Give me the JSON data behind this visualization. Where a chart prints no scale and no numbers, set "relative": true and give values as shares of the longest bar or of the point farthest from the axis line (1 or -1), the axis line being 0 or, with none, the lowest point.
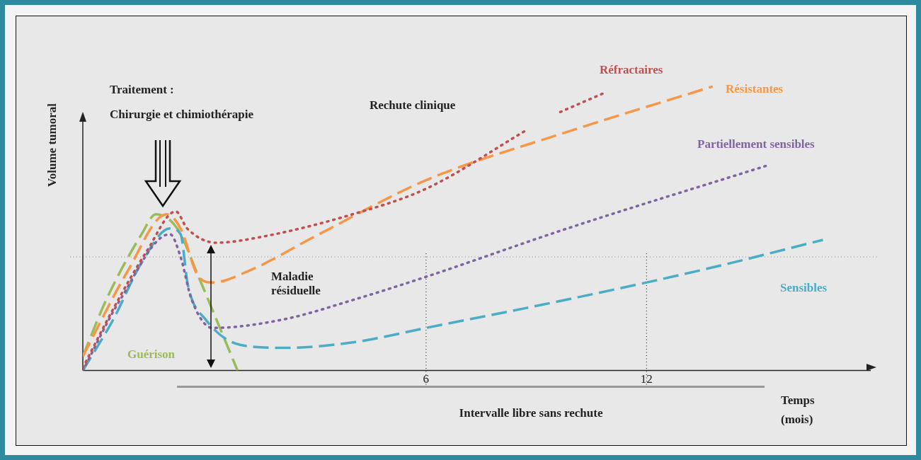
{
  "chart_data": {
    "type": "line",
    "relative": true,
    "xlabel": "Temps (mois)",
    "ylabel": "Volume tumoral",
    "xlim": [
      -3.34,
      18.1
    ],
    "xticks": [
      6,
      12
    ],
    "grid": false,
    "marker": "none",
    "annotations": [
      "Traitement :",
      "Chirurgie et chimiothérapie",
      "Rechute clinique",
      "Maladie résiduelle",
      "Intervalle libre sans rechute"
    ],
    "ref_lines": [
      {
        "axis": "y",
        "value": 0.4,
        "color": "#888888",
        "line_style": "dotted"
      },
      {
        "axis": "x",
        "value": 6,
        "color": "#333333",
        "line_style": "dotted"
      },
      {
        "axis": "x",
        "value": 12,
        "color": "#333333",
        "line_style": "dotted"
      }
    ],
    "series": [
      {
        "name": "Réfractaires",
        "color": "#c0504d",
        "line_style": "dotted",
        "x": [
          -3.34,
          -2.5,
          -1.6,
          -0.81,
          -0.5,
          0.29,
          1.5,
          4,
          6,
          8.78,
          9.2,
          9.65,
          10.9
        ],
        "values": [
          0.01,
          0.22,
          0.42,
          0.56,
          0.5,
          0.45,
          0.47,
          0.55,
          0.64,
          0.85,
          null,
          0.91,
          0.98
        ]
      },
      {
        "name": "Résistantes",
        "color": "#f79646",
        "line_style": "dashed",
        "x": [
          -3.34,
          -2.12,
          -1.06,
          -0.68,
          -0.19,
          0.19,
          1.16,
          3.09,
          6,
          9.84,
          13.8
        ],
        "values": [
          0.05,
          0.35,
          0.55,
          0.5,
          0.33,
          0.31,
          0.35,
          0.48,
          0.67,
          0.84,
          1.0
        ]
      },
      {
        "name": "Partiellement sensibles",
        "color": "#8064a2",
        "line_style": "dotted",
        "x": [
          -3.34,
          -2.32,
          -0.97,
          -0.68,
          -0.38,
          0.19,
          2.12,
          4.05,
          6,
          9.84,
          15.24
        ],
        "values": [
          0,
          0.25,
          0.48,
          0.4,
          0.25,
          0.15,
          0.18,
          0.25,
          0.33,
          0.5,
          0.72
        ]
      },
      {
        "name": "Sensibles",
        "color": "#4bacc6",
        "line_style": "dashed",
        "x": [
          -3.34,
          -2.51,
          -1.74,
          -0.97,
          -0.68,
          -0.48,
          0,
          0.96,
          2.12,
          4.05,
          6,
          9.84,
          13.7,
          16.8
        ],
        "values": [
          0,
          0.18,
          0.38,
          0.5,
          0.48,
          0.3,
          0.18,
          0.09,
          0.08,
          0.1,
          0.15,
          0.25,
          0.36,
          0.46
        ]
      },
      {
        "name": "Guérison",
        "color": "#9bbb59",
        "line_style": "dashed",
        "x": [
          -3.34,
          -2.7,
          -1.74,
          -1.35,
          -0.77,
          -0.19,
          0.39,
          0.87
        ],
        "values": [
          0.05,
          0.25,
          0.48,
          0.55,
          0.5,
          0.33,
          0.15,
          0
        ]
      }
    ]
  }
}
